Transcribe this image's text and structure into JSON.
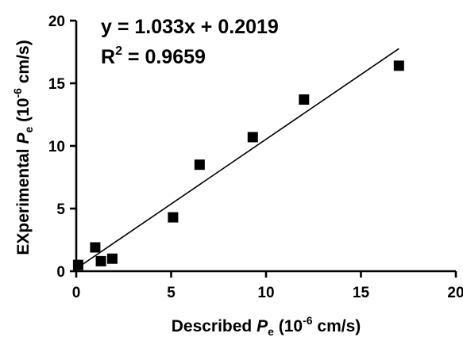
{
  "chart_data": {
    "type": "scatter",
    "title": "",
    "xlabel": {
      "prefix": "Described ",
      "symbol": "P",
      "subscript": "e",
      "unit_open": " (10",
      "exponent": "-6",
      "unit_close": " cm/s)"
    },
    "ylabel": {
      "prefix": "EXperimental ",
      "symbol": "P",
      "subscript": "e",
      "unit_open": " (10",
      "exponent": "-6",
      "unit_close": " cm/s)"
    },
    "xlim": [
      0,
      20
    ],
    "ylim": [
      0,
      20
    ],
    "x_ticks": [
      0,
      5,
      10,
      15,
      20
    ],
    "y_ticks": [
      0,
      5,
      10,
      15,
      20
    ],
    "x_tick_labels": [
      "0",
      "5",
      "10",
      "15",
      "20"
    ],
    "y_tick_labels": [
      "0",
      "5",
      "10",
      "15",
      "20"
    ],
    "series": [
      {
        "points": [
          {
            "x": 0.1,
            "y": 0.5
          },
          {
            "x": 1.0,
            "y": 1.9
          },
          {
            "x": 1.3,
            "y": 0.8
          },
          {
            "x": 1.9,
            "y": 1.0
          },
          {
            "x": 5.1,
            "y": 4.3
          },
          {
            "x": 6.5,
            "y": 8.5
          },
          {
            "x": 9.3,
            "y": 10.7
          },
          {
            "x": 12.0,
            "y": 13.7
          },
          {
            "x": 17.0,
            "y": 16.4
          }
        ],
        "marker": "square",
        "color": "#000000"
      }
    ],
    "fit_line": {
      "slope": 1.033,
      "intercept": 0.2019,
      "x_range": [
        0.1,
        17.0
      ]
    },
    "annotations": {
      "equation": "y = 1.033x + 0.2019",
      "r2_prefix": "R",
      "r2_exponent": "2",
      "r2_value": " = 0.9659"
    },
    "grid": false,
    "legend": "none"
  }
}
